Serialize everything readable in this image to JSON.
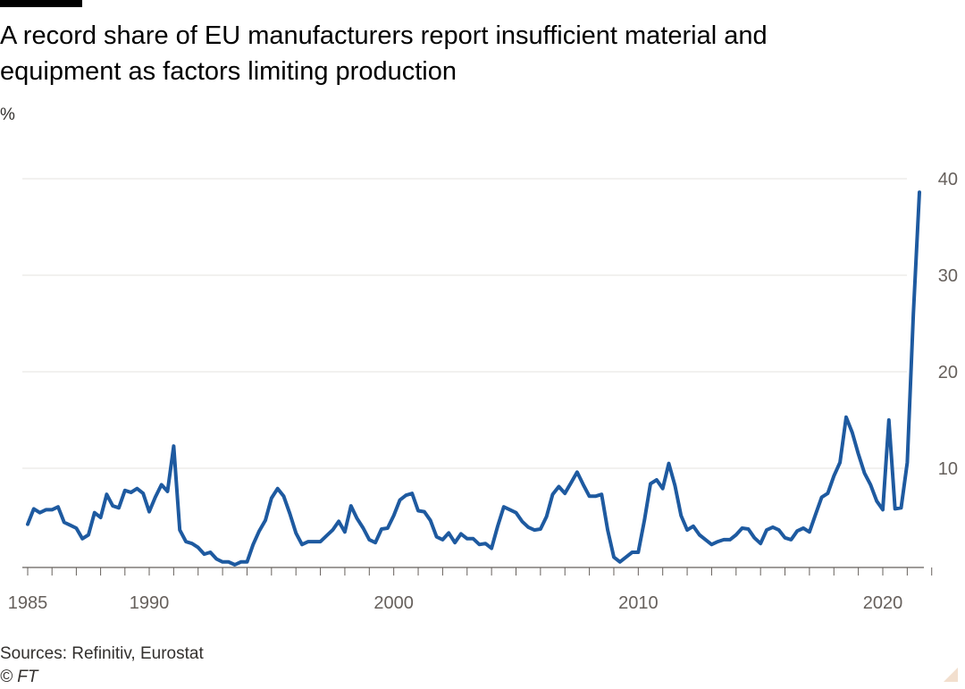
{
  "title": "A record share of EU manufacturers report insufficient material and equipment as factors limiting production",
  "unit_label": "%",
  "source": "Sources: Refinitiv, Eurostat",
  "credit": "© FT",
  "colors": {
    "line": "#1e5aa0",
    "grid": "#e6e3df",
    "axis": "#66605c",
    "text": "#33302e"
  },
  "chart_data": {
    "type": "line",
    "title": "A record share of EU manufacturers report insufficient material and equipment as factors limiting production",
    "ylabel": "%",
    "xlabel": "",
    "xlim": [
      1985,
      2022.6
    ],
    "ylim": [
      0,
      40
    ],
    "y_ticks": [
      10,
      20,
      30,
      40
    ],
    "x_tick_labels": [
      "1985",
      "1990",
      "2000",
      "2010",
      "2020"
    ],
    "grid": true,
    "y_axis_position": "right",
    "series": [
      {
        "x": [
          1985.0,
          1985.25,
          1985.5,
          1985.75,
          1986.0,
          1986.25,
          1986.5,
          1986.75,
          1987.0,
          1987.25,
          1987.5,
          1987.75,
          1988.0,
          1988.25,
          1988.5,
          1988.75,
          1989.0,
          1989.25,
          1989.5,
          1989.75,
          1990.0,
          1990.25,
          1990.5,
          1990.75,
          1991.0,
          1991.25,
          1991.5,
          1991.75,
          1992.0,
          1992.25,
          1992.5,
          1992.75,
          1993.0,
          1993.25,
          1993.5,
          1993.75,
          1994.0,
          1994.25,
          1994.5,
          1994.75,
          1995.0,
          1995.25,
          1995.5,
          1995.75,
          1996.0,
          1996.25,
          1996.5,
          1996.75,
          1997.0,
          1997.25,
          1997.5,
          1997.75,
          1998.0,
          1998.25,
          1998.5,
          1998.75,
          1999.0,
          1999.25,
          1999.5,
          1999.75,
          2000.0,
          2000.25,
          2000.5,
          2000.75,
          2001.0,
          2001.25,
          2001.5,
          2001.75,
          2002.0,
          2002.25,
          2002.5,
          2002.75,
          2003.0,
          2003.25,
          2003.5,
          2003.75,
          2004.0,
          2004.25,
          2004.5,
          2004.75,
          2005.0,
          2005.25,
          2005.5,
          2005.75,
          2006.0,
          2006.25,
          2006.5,
          2006.75,
          2007.0,
          2007.25,
          2007.5,
          2007.75,
          2008.0,
          2008.25,
          2008.5,
          2008.75,
          2009.0,
          2009.25,
          2009.5,
          2009.75,
          2010.0,
          2010.25,
          2010.5,
          2010.75,
          2011.0,
          2011.25,
          2011.5,
          2011.75,
          2012.0,
          2012.25,
          2012.5,
          2012.75,
          2013.0,
          2013.25,
          2013.5,
          2013.75,
          2014.0,
          2014.25,
          2014.5,
          2014.75,
          2015.0,
          2015.25,
          2015.5,
          2015.75,
          2016.0,
          2016.25,
          2016.5,
          2016.75,
          2017.0,
          2017.25,
          2017.5,
          2017.75,
          2018.0,
          2018.25,
          2018.5,
          2018.75,
          2019.0,
          2019.25,
          2019.5,
          2019.75,
          2020.0,
          2020.25,
          2020.5,
          2020.75,
          2021.0,
          2021.25,
          2021.5
        ],
        "y": [
          4.2,
          5.8,
          5.4,
          5.7,
          5.7,
          6.0,
          4.4,
          4.1,
          3.8,
          2.7,
          3.1,
          5.4,
          4.9,
          7.3,
          6.1,
          5.9,
          7.7,
          7.5,
          7.9,
          7.4,
          5.5,
          7.0,
          8.3,
          7.6,
          12.3,
          3.6,
          2.4,
          2.2,
          1.8,
          1.1,
          1.3,
          0.6,
          0.3,
          0.3,
          0.0,
          0.3,
          0.3,
          2.1,
          3.5,
          4.6,
          6.9,
          7.9,
          7.1,
          5.3,
          3.3,
          2.1,
          2.4,
          2.4,
          2.4,
          3.0,
          3.6,
          4.5,
          3.4,
          6.1,
          4.8,
          3.8,
          2.6,
          2.3,
          3.7,
          3.8,
          5.1,
          6.7,
          7.2,
          7.4,
          5.6,
          5.5,
          4.6,
          2.9,
          2.6,
          3.3,
          2.3,
          3.2,
          2.7,
          2.7,
          2.1,
          2.2,
          1.7,
          4.0,
          6.0,
          5.7,
          5.4,
          4.5,
          3.9,
          3.6,
          3.7,
          5.0,
          7.3,
          8.1,
          7.4,
          8.5,
          9.6,
          8.3,
          7.1,
          7.1,
          7.3,
          3.6,
          0.8,
          0.3,
          0.8,
          1.3,
          1.3,
          4.6,
          8.4,
          8.8,
          7.9,
          10.5,
          8.2,
          5.1,
          3.6,
          4.0,
          3.1,
          2.6,
          2.1,
          2.4,
          2.6,
          2.6,
          3.1,
          3.8,
          3.7,
          2.8,
          2.2,
          3.6,
          3.9,
          3.6,
          2.8,
          2.6,
          3.5,
          3.8,
          3.4,
          5.2,
          7.0,
          7.4,
          9.2,
          10.6,
          15.3,
          13.7,
          11.5,
          9.5,
          8.3,
          6.6,
          5.7,
          15.0,
          5.8,
          5.9,
          10.6,
          26.0,
          38.6
        ]
      }
    ]
  }
}
